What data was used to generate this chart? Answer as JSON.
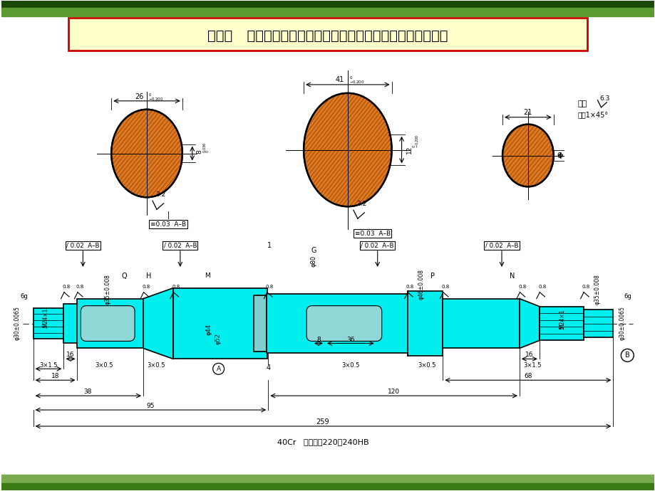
{
  "title": "任务一   制订传动轴零件的工艺规程，分析轴类零件的工艺工装",
  "title_bg": "#FFFFCC",
  "title_border": "#CC0000",
  "bg_color": "#FFFFFF",
  "orange_fill": "#E07820",
  "orange_hatch": "#A05010",
  "cyan_fill": "#00EEEE",
  "shaft_outline": "#000000",
  "material_text": "40Cr   调质处理220～240HB",
  "surface_note": "其余",
  "chamfer_note": "倒角1×45°",
  "top_bar1": "#1A4A0A",
  "top_bar2": "#5A9A30",
  "bot_bar1": "#3A7A15",
  "bot_bar2": "#7AAA50"
}
